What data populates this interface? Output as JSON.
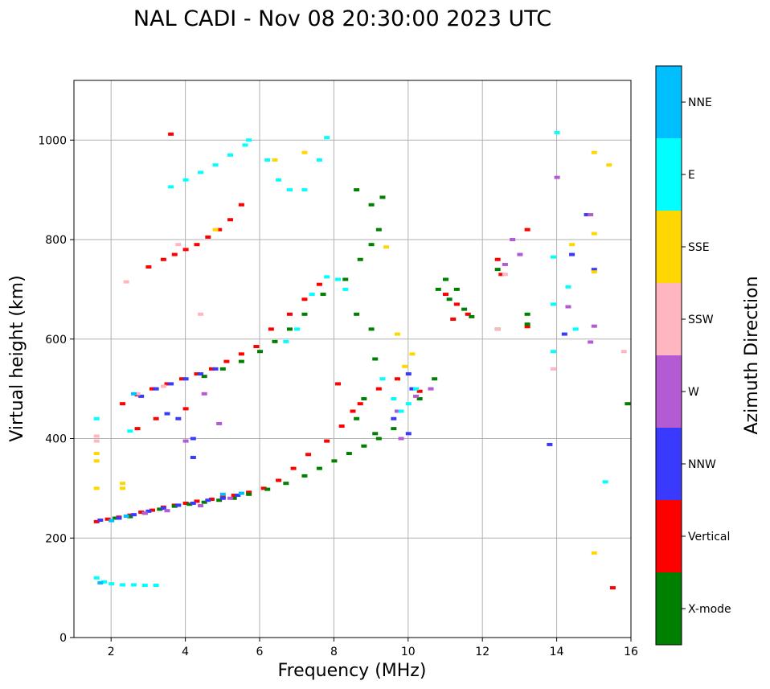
{
  "chart_data": {
    "type": "scatter",
    "title": "NAL CADI - Nov 08 20:30:00 2023 UTC",
    "xlabel": "Frequency (MHz)",
    "ylabel": "Virtual height (km)",
    "xlim": [
      1,
      16
    ],
    "ylim": [
      0,
      1120
    ],
    "xticks": [
      2,
      4,
      6,
      8,
      10,
      12,
      14,
      16
    ],
    "yticks": [
      0,
      200,
      400,
      600,
      800,
      1000
    ],
    "grid": true,
    "colorbar": {
      "label": "Azimuth Direction",
      "categories": [
        {
          "name": "X-mode",
          "color": "#008000"
        },
        {
          "name": "Vertical",
          "color": "#ff0000"
        },
        {
          "name": "NNW",
          "color": "#3a3aff"
        },
        {
          "name": "W",
          "color": "#b45ad2"
        },
        {
          "name": "SSW",
          "color": "#ffb6c1"
        },
        {
          "name": "SSE",
          "color": "#ffd700"
        },
        {
          "name": "E",
          "color": "#00ffff"
        },
        {
          "name": "NNE",
          "color": "#00bfff"
        }
      ]
    },
    "series": [
      {
        "name": "Vertical",
        "points": [
          [
            1.6,
            233
          ],
          [
            1.9,
            238
          ],
          [
            2.2,
            242
          ],
          [
            2.5,
            246
          ],
          [
            2.8,
            252
          ],
          [
            3.1,
            256
          ],
          [
            3.4,
            262
          ],
          [
            3.7,
            266
          ],
          [
            4.0,
            270
          ],
          [
            4.3,
            274
          ],
          [
            4.7,
            278
          ],
          [
            5.0,
            282
          ],
          [
            5.3,
            286
          ],
          [
            5.7,
            292
          ],
          [
            6.1,
            300
          ],
          [
            6.5,
            316
          ],
          [
            6.9,
            340
          ],
          [
            7.3,
            368
          ],
          [
            7.8,
            395
          ],
          [
            8.2,
            425
          ],
          [
            8.7,
            470
          ],
          [
            9.2,
            500
          ],
          [
            9.7,
            520
          ],
          [
            10.3,
            495
          ],
          [
            2.3,
            470
          ],
          [
            2.7,
            488
          ],
          [
            3.1,
            500
          ],
          [
            3.5,
            510
          ],
          [
            3.9,
            520
          ],
          [
            4.3,
            530
          ],
          [
            4.7,
            540
          ],
          [
            5.1,
            555
          ],
          [
            5.5,
            570
          ],
          [
            5.9,
            585
          ],
          [
            6.3,
            620
          ],
          [
            6.8,
            650
          ],
          [
            7.2,
            680
          ],
          [
            7.6,
            710
          ],
          [
            3.0,
            745
          ],
          [
            3.4,
            760
          ],
          [
            3.7,
            770
          ],
          [
            4.0,
            780
          ],
          [
            4.3,
            790
          ],
          [
            4.6,
            805
          ],
          [
            4.9,
            820
          ],
          [
            5.2,
            840
          ],
          [
            5.5,
            870
          ],
          [
            11.0,
            690
          ],
          [
            11.3,
            670
          ],
          [
            11.6,
            650
          ],
          [
            11.2,
            640
          ],
          [
            12.4,
            760
          ],
          [
            12.5,
            730
          ],
          [
            13.2,
            820
          ],
          [
            13.2,
            625
          ],
          [
            15.5,
            100
          ],
          [
            3.6,
            1012
          ],
          [
            2.7,
            420
          ],
          [
            3.2,
            440
          ],
          [
            4.0,
            460
          ],
          [
            8.5,
            455
          ],
          [
            8.1,
            510
          ]
        ]
      },
      {
        "name": "X-mode",
        "points": [
          [
            2.1,
            240
          ],
          [
            2.5,
            243
          ],
          [
            2.9,
            250
          ],
          [
            3.3,
            258
          ],
          [
            3.7,
            264
          ],
          [
            4.1,
            268
          ],
          [
            4.5,
            272
          ],
          [
            4.9,
            276
          ],
          [
            5.3,
            280
          ],
          [
            5.7,
            288
          ],
          [
            6.2,
            298
          ],
          [
            6.7,
            310
          ],
          [
            7.2,
            325
          ],
          [
            7.6,
            340
          ],
          [
            8.0,
            355
          ],
          [
            8.4,
            370
          ],
          [
            8.8,
            385
          ],
          [
            9.2,
            400
          ],
          [
            9.6,
            420
          ],
          [
            4.5,
            525
          ],
          [
            5.0,
            540
          ],
          [
            5.5,
            555
          ],
          [
            6.0,
            575
          ],
          [
            6.4,
            595
          ],
          [
            6.8,
            620
          ],
          [
            7.2,
            650
          ],
          [
            7.7,
            690
          ],
          [
            8.3,
            720
          ],
          [
            8.7,
            760
          ],
          [
            9.0,
            790
          ],
          [
            9.2,
            820
          ],
          [
            9.0,
            870
          ],
          [
            9.3,
            885
          ],
          [
            8.6,
            900
          ],
          [
            8.6,
            650
          ],
          [
            9.0,
            620
          ],
          [
            9.1,
            560
          ],
          [
            8.8,
            480
          ],
          [
            8.6,
            440
          ],
          [
            9.1,
            410
          ],
          [
            10.8,
            700
          ],
          [
            11.1,
            680
          ],
          [
            11.5,
            660
          ],
          [
            11.7,
            645
          ],
          [
            11.0,
            720
          ],
          [
            11.3,
            700
          ],
          [
            12.4,
            740
          ],
          [
            13.2,
            650
          ],
          [
            13.2,
            630
          ],
          [
            12.4,
            620
          ],
          [
            15.9,
            470
          ],
          [
            10.7,
            520
          ],
          [
            10.3,
            480
          ]
        ]
      },
      {
        "name": "NNW",
        "points": [
          [
            1.7,
            236
          ],
          [
            2.2,
            240
          ],
          [
            2.6,
            247
          ],
          [
            3.0,
            254
          ],
          [
            3.4,
            260
          ],
          [
            3.8,
            266
          ],
          [
            4.2,
            270
          ],
          [
            4.6,
            276
          ],
          [
            5.0,
            280
          ],
          [
            5.4,
            286
          ],
          [
            2.8,
            485
          ],
          [
            3.2,
            500
          ],
          [
            3.6,
            510
          ],
          [
            4.0,
            520
          ],
          [
            4.4,
            530
          ],
          [
            4.8,
            540
          ],
          [
            3.8,
            440
          ],
          [
            4.2,
            400
          ],
          [
            4.2,
            362
          ],
          [
            3.5,
            450
          ],
          [
            10.0,
            530
          ],
          [
            10.1,
            500
          ],
          [
            10.0,
            410
          ],
          [
            9.6,
            440
          ],
          [
            13.8,
            388
          ],
          [
            14.2,
            610
          ],
          [
            14.4,
            770
          ],
          [
            14.8,
            850
          ],
          [
            15.0,
            740
          ]
        ]
      },
      {
        "name": "W",
        "points": [
          [
            2.9,
            250
          ],
          [
            3.5,
            255
          ],
          [
            4.4,
            265
          ],
          [
            5.2,
            280
          ],
          [
            10.2,
            485
          ],
          [
            10.6,
            500
          ],
          [
            9.7,
            455
          ],
          [
            9.8,
            400
          ],
          [
            14.0,
            925
          ],
          [
            14.9,
            850
          ],
          [
            15.0,
            626
          ],
          [
            14.9,
            594
          ],
          [
            14.3,
            665
          ],
          [
            12.8,
            800
          ],
          [
            12.6,
            750
          ],
          [
            13.0,
            770
          ],
          [
            4.0,
            395
          ],
          [
            4.5,
            490
          ],
          [
            4.9,
            430
          ]
        ]
      },
      {
        "name": "SSW",
        "points": [
          [
            1.6,
            405
          ],
          [
            1.6,
            395
          ],
          [
            2.7,
            490
          ],
          [
            3.4,
            505
          ],
          [
            12.4,
            620
          ],
          [
            12.6,
            730
          ],
          [
            13.9,
            540
          ],
          [
            15.8,
            575
          ],
          [
            4.4,
            650
          ],
          [
            3.8,
            790
          ],
          [
            2.4,
            715
          ]
        ]
      },
      {
        "name": "SSE",
        "points": [
          [
            1.6,
            300
          ],
          [
            1.6,
            355
          ],
          [
            1.6,
            370
          ],
          [
            2.3,
            310
          ],
          [
            2.3,
            300
          ],
          [
            9.4,
            785
          ],
          [
            9.7,
            610
          ],
          [
            10.1,
            570
          ],
          [
            9.9,
            545
          ],
          [
            15.0,
            975
          ],
          [
            15.4,
            950
          ],
          [
            15.0,
            812
          ],
          [
            15.0,
            735
          ],
          [
            14.4,
            790
          ],
          [
            15.0,
            170
          ],
          [
            4.8,
            820
          ],
          [
            7.2,
            975
          ],
          [
            6.4,
            960
          ]
        ]
      },
      {
        "name": "E",
        "points": [
          [
            1.6,
            120
          ],
          [
            1.8,
            112
          ],
          [
            2.0,
            108
          ],
          [
            2.3,
            106
          ],
          [
            2.6,
            106
          ],
          [
            2.9,
            105
          ],
          [
            3.2,
            105
          ],
          [
            3.6,
            906
          ],
          [
            4.0,
            920
          ],
          [
            4.4,
            935
          ],
          [
            4.8,
            950
          ],
          [
            5.2,
            970
          ],
          [
            5.6,
            990
          ],
          [
            5.7,
            1000
          ],
          [
            6.2,
            960
          ],
          [
            6.5,
            920
          ],
          [
            6.8,
            900
          ],
          [
            7.2,
            900
          ],
          [
            7.6,
            960
          ],
          [
            7.8,
            1005
          ],
          [
            6.7,
            595
          ],
          [
            7.0,
            620
          ],
          [
            7.4,
            690
          ],
          [
            7.8,
            725
          ],
          [
            8.1,
            720
          ],
          [
            8.3,
            700
          ],
          [
            9.3,
            520
          ],
          [
            9.6,
            480
          ],
          [
            9.8,
            455
          ],
          [
            10.0,
            470
          ],
          [
            10.2,
            500
          ],
          [
            13.9,
            765
          ],
          [
            13.9,
            670
          ],
          [
            13.9,
            575
          ],
          [
            14.3,
            705
          ],
          [
            14.5,
            620
          ],
          [
            14.0,
            1015
          ],
          [
            15.3,
            313
          ],
          [
            1.6,
            440
          ],
          [
            2.5,
            415
          ]
        ]
      },
      {
        "name": "NNE",
        "points": [
          [
            1.7,
            110
          ],
          [
            2.0,
            235
          ],
          [
            2.4,
            244
          ],
          [
            2.6,
            490
          ],
          [
            5.0,
            288
          ],
          [
            5.5,
            290
          ]
        ]
      }
    ]
  }
}
